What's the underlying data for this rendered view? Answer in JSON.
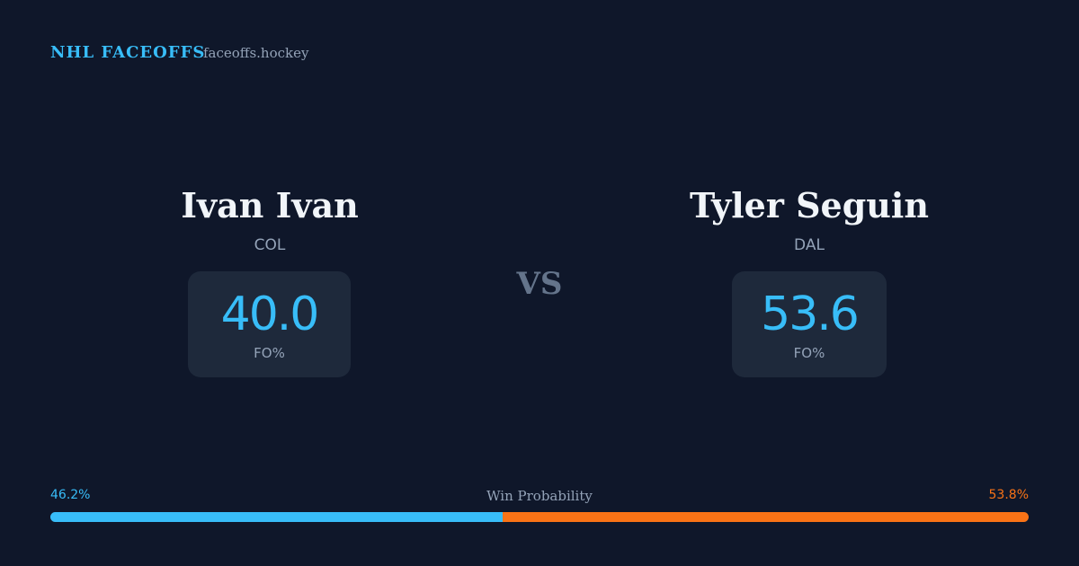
{
  "header": {
    "brand": "NHL FACEOFFS",
    "site": "faceoffs.hockey"
  },
  "players": [
    {
      "name": "Ivan Ivan",
      "team": "COL",
      "fo": {
        "value": 40,
        "label": "40.0"
      },
      "fo_label": "FO%"
    },
    {
      "name": "Tyler Seguin",
      "team": "DAL",
      "fo": {
        "value": 53.6,
        "label": "53.6"
      },
      "fo_label": "FO%"
    }
  ],
  "vs": "VS",
  "win_probability": {
    "label": "Win Probability",
    "home": {
      "value": 46.2,
      "label": "46.2%",
      "color": "#38bdf8"
    },
    "away": {
      "value": 53.8,
      "label": "53.8%",
      "color": "#f97316"
    }
  }
}
